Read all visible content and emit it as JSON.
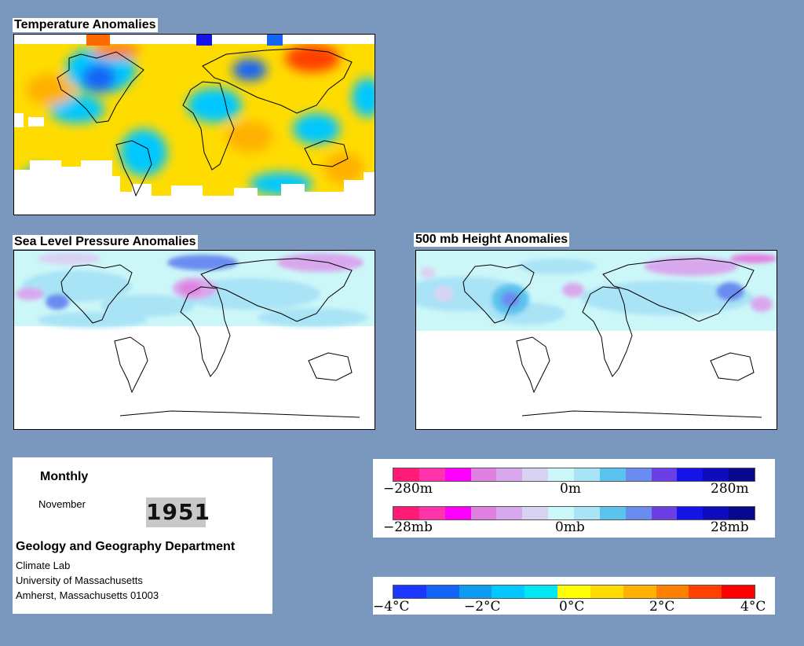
{
  "maps": {
    "temperature": {
      "title": "Temperature Anomalies"
    },
    "pressure": {
      "title": "Sea Level Pressure Anomalies"
    },
    "height": {
      "title": "500 mb Height Anomalies"
    }
  },
  "info": {
    "period": "Monthly",
    "month": "November",
    "year": "1951",
    "department": "Geology and Geography Department",
    "lab": "Climate Lab",
    "university": "University of Massachusetts",
    "address": "Amherst, Massachusetts 01003"
  },
  "legends": {
    "height": {
      "min": "−280m",
      "mid": "0m",
      "max": "280m"
    },
    "pressure": {
      "min": "−28mb",
      "mid": "0mb",
      "max": "28mb"
    },
    "temperature": {
      "t1": "−4°C",
      "t2": "−2°C",
      "t3": "0°C",
      "t4": "2°C",
      "t5": "4°C"
    }
  },
  "colors": {
    "background": "#7a98bd",
    "anomaly_scale": [
      "#ff1a75",
      "#ff33aa",
      "#ff00ff",
      "#e080e0",
      "#d8a8ee",
      "#d9d3f3",
      "#ccf7f8",
      "#a9e3f6",
      "#5cc3ee",
      "#6a8cf0",
      "#6b3ee6",
      "#1414e8",
      "#0d0dbf",
      "#08088f"
    ],
    "temperature_scale": [
      "#1a36ff",
      "#1464f5",
      "#0d9cf0",
      "#00c8ff",
      "#00e6f5",
      "#ffff00",
      "#ffdc00",
      "#ffb000",
      "#ff8000",
      "#ff4000",
      "#ff0000"
    ]
  }
}
